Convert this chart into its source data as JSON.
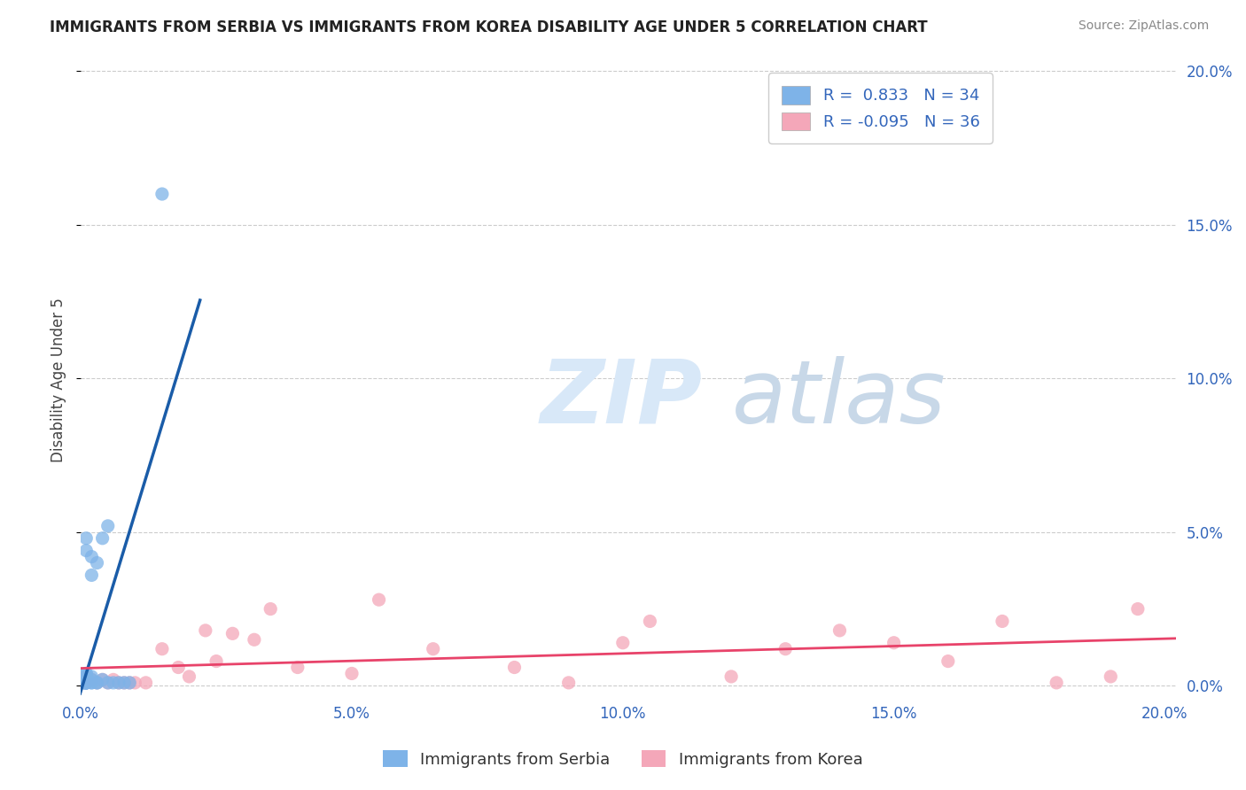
{
  "title": "IMMIGRANTS FROM SERBIA VS IMMIGRANTS FROM KOREA DISABILITY AGE UNDER 5 CORRELATION CHART",
  "source": "Source: ZipAtlas.com",
  "ylabel": "Disability Age Under 5",
  "serbia_R": 0.833,
  "serbia_N": 34,
  "korea_R": -0.095,
  "korea_N": 36,
  "serbia_color": "#7EB3E8",
  "korea_color": "#F4A7B9",
  "serbia_trend_color": "#1A5CA8",
  "korea_trend_color": "#E8436A",
  "serbia_x": [
    0.0005,
    0.0005,
    0.001,
    0.001,
    0.001,
    0.001,
    0.001,
    0.001,
    0.001,
    0.001,
    0.001,
    0.001,
    0.001,
    0.001,
    0.001,
    0.001,
    0.002,
    0.002,
    0.002,
    0.002,
    0.002,
    0.002,
    0.003,
    0.003,
    0.003,
    0.004,
    0.004,
    0.005,
    0.005,
    0.006,
    0.007,
    0.008,
    0.009,
    0.015
  ],
  "serbia_y": [
    0.001,
    0.001,
    0.001,
    0.001,
    0.001,
    0.001,
    0.001,
    0.001,
    0.002,
    0.002,
    0.003,
    0.003,
    0.004,
    0.004,
    0.044,
    0.048,
    0.001,
    0.001,
    0.002,
    0.003,
    0.036,
    0.042,
    0.001,
    0.001,
    0.04,
    0.002,
    0.048,
    0.001,
    0.052,
    0.001,
    0.001,
    0.001,
    0.001,
    0.16
  ],
  "korea_x": [
    0.001,
    0.002,
    0.003,
    0.004,
    0.005,
    0.006,
    0.007,
    0.008,
    0.009,
    0.01,
    0.012,
    0.015,
    0.018,
    0.02,
    0.023,
    0.025,
    0.028,
    0.032,
    0.035,
    0.04,
    0.05,
    0.055,
    0.065,
    0.08,
    0.09,
    0.1,
    0.105,
    0.12,
    0.13,
    0.14,
    0.15,
    0.16,
    0.17,
    0.18,
    0.19,
    0.195
  ],
  "korea_y": [
    0.001,
    0.002,
    0.001,
    0.002,
    0.001,
    0.002,
    0.001,
    0.001,
    0.001,
    0.001,
    0.001,
    0.012,
    0.006,
    0.003,
    0.018,
    0.008,
    0.017,
    0.015,
    0.025,
    0.006,
    0.004,
    0.028,
    0.012,
    0.006,
    0.001,
    0.014,
    0.021,
    0.003,
    0.012,
    0.018,
    0.014,
    0.008,
    0.021,
    0.001,
    0.003,
    0.025
  ],
  "xlim": [
    0.0,
    0.202
  ],
  "ylim": [
    -0.003,
    0.202
  ],
  "xticks": [
    0.0,
    0.05,
    0.1,
    0.15,
    0.2
  ],
  "yticks": [
    0.0,
    0.05,
    0.1,
    0.15,
    0.2
  ],
  "grid_color": "#CCCCCC",
  "top_dash_color": "#BBBBBB"
}
